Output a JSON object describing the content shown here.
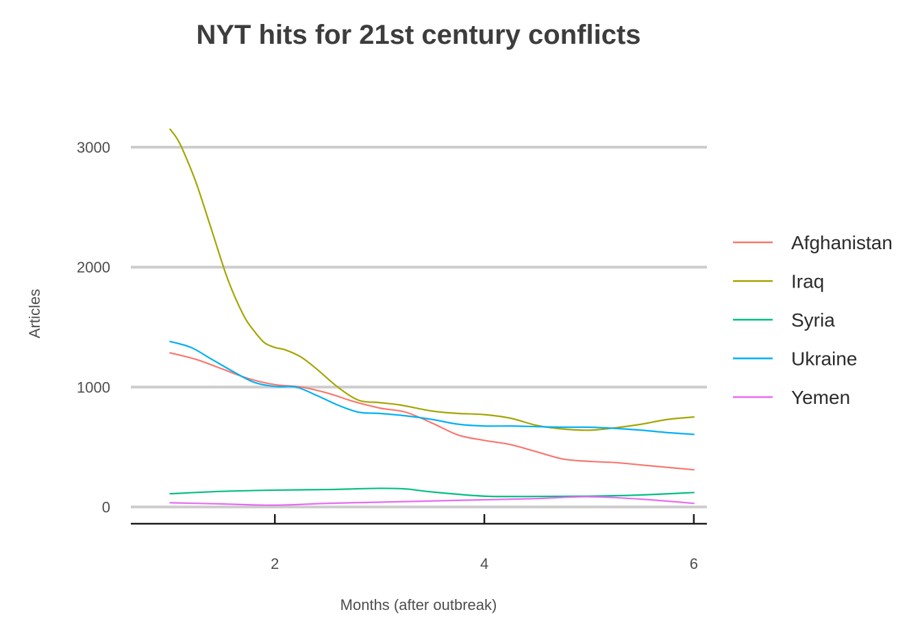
{
  "chart_data": {
    "type": "line",
    "title": "NYT hits for 21st century conflicts",
    "xlabel": "Months (after outbreak)",
    "ylabel": "Articles",
    "xlim": [
      0.625,
      6.125
    ],
    "ylim": [
      -140,
      3400
    ],
    "x_ticks": [
      2,
      4,
      6
    ],
    "y_ticks": [
      0,
      1000,
      2000,
      3000
    ],
    "grid": true,
    "legend_position": "right",
    "series": [
      {
        "name": "Afghanistan",
        "color": "#F8766D",
        "x": [
          1,
          1.25,
          1.5,
          1.75,
          2,
          2.25,
          2.5,
          2.75,
          3,
          3.25,
          3.5,
          3.75,
          4,
          4.25,
          4.5,
          4.75,
          5,
          5.25,
          5.5,
          5.75,
          6
        ],
        "y": [
          1285,
          1230,
          1150,
          1070,
          1020,
          1000,
          950,
          880,
          825,
          790,
          700,
          600,
          555,
          520,
          460,
          400,
          380,
          370,
          350,
          330,
          310
        ]
      },
      {
        "name": "Iraq",
        "color": "#A3A500",
        "x": [
          1,
          1.06,
          1.12,
          1.25,
          1.4,
          1.55,
          1.7,
          1.8,
          1.9,
          2,
          2.1,
          2.25,
          2.4,
          2.6,
          2.8,
          3,
          3.2,
          3.5,
          3.75,
          4,
          4.25,
          4.5,
          4.75,
          5,
          5.25,
          5.5,
          5.75,
          6
        ],
        "y": [
          3150,
          3080,
          2980,
          2700,
          2300,
          1900,
          1600,
          1470,
          1370,
          1330,
          1310,
          1250,
          1150,
          1000,
          890,
          870,
          850,
          800,
          780,
          770,
          740,
          680,
          650,
          640,
          660,
          690,
          730,
          750
        ]
      },
      {
        "name": "Syria",
        "color": "#00BF7D",
        "x": [
          1,
          1.5,
          2,
          2.5,
          3,
          3.25,
          3.5,
          4,
          4.5,
          5,
          5.5,
          6
        ],
        "y": [
          110,
          130,
          140,
          145,
          155,
          150,
          125,
          90,
          88,
          90,
          100,
          120
        ]
      },
      {
        "name": "Ukraine",
        "color": "#00B0F6",
        "x": [
          1,
          1.2,
          1.4,
          1.6,
          1.8,
          2,
          2.2,
          2.4,
          2.6,
          2.8,
          3,
          3.25,
          3.5,
          3.75,
          4,
          4.25,
          4.5,
          4.75,
          5,
          5.25,
          5.5,
          5.75,
          6
        ],
        "y": [
          1380,
          1330,
          1230,
          1130,
          1040,
          1005,
          1000,
          930,
          850,
          790,
          780,
          760,
          730,
          690,
          675,
          675,
          670,
          665,
          665,
          655,
          640,
          620,
          605
        ]
      },
      {
        "name": "Yemen",
        "color": "#E76BF3",
        "x": [
          1,
          1.5,
          2,
          2.5,
          3,
          3.5,
          4,
          4.5,
          5,
          5.5,
          6
        ],
        "y": [
          35,
          25,
          15,
          30,
          40,
          50,
          60,
          70,
          85,
          65,
          30
        ]
      }
    ]
  }
}
